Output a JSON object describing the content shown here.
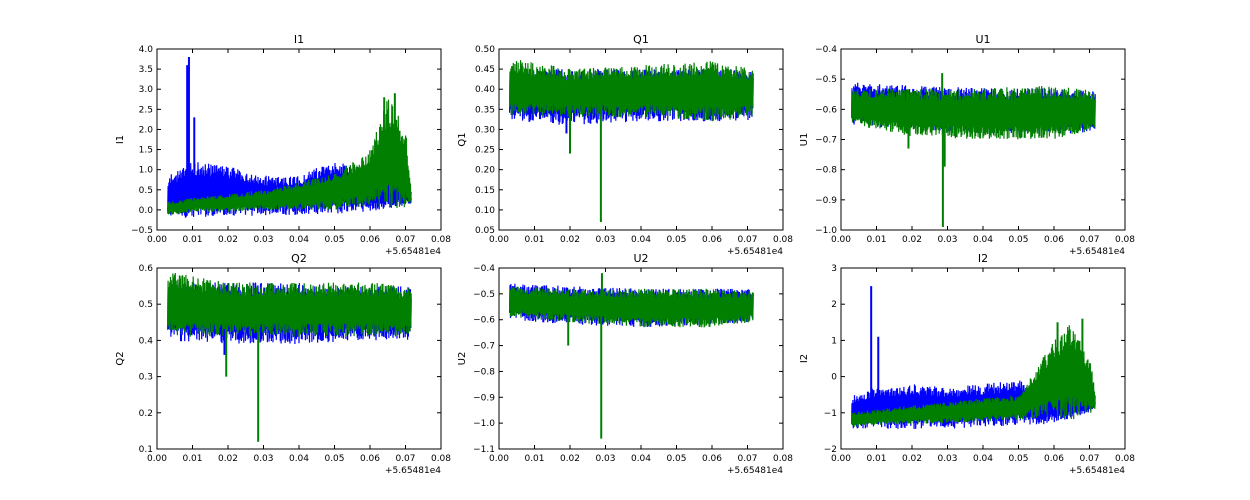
{
  "chart_data": [
    {
      "type": "line",
      "title": "I1",
      "xlabel": "",
      "ylabel": "I1",
      "xlim": [
        0.0,
        0.08
      ],
      "ylim": [
        -0.5,
        4.0
      ],
      "xticks": [
        "0.00",
        "0.01",
        "0.02",
        "0.03",
        "0.04",
        "0.05",
        "0.06",
        "0.07",
        "0.08"
      ],
      "yticks": [
        "−0.5",
        "0.0",
        "0.5",
        "1.0",
        "1.5",
        "2.0",
        "2.5",
        "3.0",
        "3.5",
        "4.0"
      ],
      "offset_label": "+5.65481e4",
      "series": [
        {
          "color": "#0000ff",
          "envelope_x": [
            0.003,
            0.01,
            0.02,
            0.03,
            0.04,
            0.05,
            0.06,
            0.07,
            0.0715
          ],
          "low": [
            -0.2,
            -0.2,
            -0.15,
            -0.15,
            -0.12,
            -0.1,
            -0.05,
            0.1,
            0.15
          ],
          "high": [
            0.85,
            1.2,
            1.1,
            0.85,
            0.85,
            1.25,
            1.0,
            0.75,
            0.3
          ],
          "spikes": [
            [
              0.0085,
              3.6
            ],
            [
              0.009,
              3.8
            ],
            [
              0.0105,
              2.3
            ]
          ]
        },
        {
          "color": "#007f00",
          "envelope_x": [
            0.003,
            0.01,
            0.02,
            0.03,
            0.04,
            0.05,
            0.06,
            0.065,
            0.07,
            0.0715
          ],
          "low": [
            -0.15,
            -0.05,
            -0.05,
            0.0,
            0.0,
            0.0,
            0.1,
            0.0,
            0.0,
            0.2
          ],
          "high": [
            0.2,
            0.3,
            0.4,
            0.5,
            0.7,
            0.9,
            1.5,
            2.8,
            2.0,
            0.5
          ],
          "spikes": [
            [
              0.067,
              2.9
            ],
            [
              0.064,
              2.8
            ]
          ]
        }
      ]
    },
    {
      "type": "line",
      "title": "Q1",
      "xlabel": "",
      "ylabel": "Q1",
      "xlim": [
        0.0,
        0.08
      ],
      "ylim": [
        0.05,
        0.5
      ],
      "xticks": [
        "0.00",
        "0.01",
        "0.02",
        "0.03",
        "0.04",
        "0.05",
        "0.06",
        "0.07",
        "0.08"
      ],
      "yticks": [
        "0.05",
        "0.10",
        "0.15",
        "0.20",
        "0.25",
        "0.30",
        "0.35",
        "0.40",
        "0.45",
        "0.50"
      ],
      "offset_label": "+5.65481e4",
      "series": [
        {
          "color": "#0000ff",
          "envelope_x": [
            0.003,
            0.02,
            0.04,
            0.06,
            0.0715
          ],
          "low": [
            0.32,
            0.31,
            0.32,
            0.32,
            0.32
          ],
          "high": [
            0.45,
            0.45,
            0.45,
            0.45,
            0.45
          ],
          "spikes": [
            [
              0.019,
              0.29
            ]
          ]
        },
        {
          "color": "#007f00",
          "envelope_x": [
            0.003,
            0.02,
            0.04,
            0.06,
            0.0715
          ],
          "low": [
            0.33,
            0.33,
            0.33,
            0.32,
            0.33
          ],
          "high": [
            0.48,
            0.45,
            0.46,
            0.47,
            0.45
          ],
          "spikes": [
            [
              0.0287,
              0.07
            ],
            [
              0.02,
              0.24
            ]
          ]
        }
      ]
    },
    {
      "type": "line",
      "title": "U1",
      "xlabel": "",
      "ylabel": "U1",
      "xlim": [
        0.0,
        0.08
      ],
      "ylim": [
        -1.0,
        -0.4
      ],
      "xticks": [
        "0.00",
        "0.01",
        "0.02",
        "0.03",
        "0.04",
        "0.05",
        "0.06",
        "0.07",
        "0.08"
      ],
      "yticks": [
        "−1.0",
        "−0.9",
        "−0.8",
        "−0.7",
        "−0.6",
        "−0.5",
        "−0.4"
      ],
      "offset_label": "+5.65481e4",
      "series": [
        {
          "color": "#0000ff",
          "envelope_x": [
            0.003,
            0.02,
            0.04,
            0.06,
            0.0715
          ],
          "low": [
            -0.65,
            -0.67,
            -0.68,
            -0.68,
            -0.68
          ],
          "high": [
            -0.51,
            -0.52,
            -0.53,
            -0.53,
            -0.54
          ],
          "spikes": []
        },
        {
          "color": "#007f00",
          "envelope_x": [
            0.003,
            0.02,
            0.04,
            0.06,
            0.0715
          ],
          "low": [
            -0.65,
            -0.69,
            -0.7,
            -0.7,
            -0.67
          ],
          "high": [
            -0.53,
            -0.53,
            -0.53,
            -0.52,
            -0.54
          ],
          "spikes": [
            [
              0.0287,
              -0.99
            ],
            [
              0.0292,
              -0.79
            ],
            [
              0.0285,
              -0.48
            ],
            [
              0.019,
              -0.73
            ]
          ]
        }
      ]
    },
    {
      "type": "line",
      "title": "Q2",
      "xlabel": "",
      "ylabel": "Q2",
      "xlim": [
        0.0,
        0.08
      ],
      "ylim": [
        0.1,
        0.6
      ],
      "xticks": [
        "0.00",
        "0.01",
        "0.02",
        "0.03",
        "0.04",
        "0.05",
        "0.06",
        "0.07",
        "0.08"
      ],
      "yticks": [
        "0.1",
        "0.2",
        "0.3",
        "0.4",
        "0.5",
        "0.6"
      ],
      "offset_label": "+5.65481e4",
      "series": [
        {
          "color": "#0000ff",
          "envelope_x": [
            0.003,
            0.02,
            0.04,
            0.06,
            0.0715
          ],
          "low": [
            0.4,
            0.39,
            0.39,
            0.4,
            0.4
          ],
          "high": [
            0.56,
            0.56,
            0.56,
            0.55,
            0.55
          ],
          "spikes": [
            [
              0.019,
              0.36
            ]
          ]
        },
        {
          "color": "#007f00",
          "envelope_x": [
            0.003,
            0.02,
            0.04,
            0.06,
            0.0715
          ],
          "low": [
            0.41,
            0.41,
            0.41,
            0.41,
            0.41
          ],
          "high": [
            0.59,
            0.56,
            0.56,
            0.56,
            0.55
          ],
          "spikes": [
            [
              0.0285,
              0.12
            ],
            [
              0.0195,
              0.3
            ]
          ]
        }
      ]
    },
    {
      "type": "line",
      "title": "U2",
      "xlabel": "",
      "ylabel": "U2",
      "xlim": [
        0.0,
        0.08
      ],
      "ylim": [
        -1.1,
        -0.4
      ],
      "xticks": [
        "0.00",
        "0.01",
        "0.02",
        "0.03",
        "0.04",
        "0.05",
        "0.06",
        "0.07",
        "0.08"
      ],
      "yticks": [
        "−1.1",
        "−1.0",
        "−0.9",
        "−0.8",
        "−0.7",
        "−0.6",
        "−0.5",
        "−0.4"
      ],
      "offset_label": "+5.65481e4",
      "series": [
        {
          "color": "#0000ff",
          "envelope_x": [
            0.003,
            0.02,
            0.04,
            0.06,
            0.0715
          ],
          "low": [
            -0.6,
            -0.62,
            -0.63,
            -0.62,
            -0.61
          ],
          "high": [
            -0.46,
            -0.47,
            -0.48,
            -0.48,
            -0.48
          ],
          "spikes": []
        },
        {
          "color": "#007f00",
          "envelope_x": [
            0.003,
            0.02,
            0.04,
            0.06,
            0.0715
          ],
          "low": [
            -0.59,
            -0.61,
            -0.63,
            -0.63,
            -0.61
          ],
          "high": [
            -0.47,
            -0.48,
            -0.48,
            -0.48,
            -0.49
          ],
          "spikes": [
            [
              0.0288,
              -1.06
            ],
            [
              0.029,
              -0.42
            ],
            [
              0.0195,
              -0.7
            ]
          ]
        }
      ]
    },
    {
      "type": "line",
      "title": "I2",
      "xlabel": "",
      "ylabel": "I2",
      "xlim": [
        0.0,
        0.08
      ],
      "ylim": [
        -2.0,
        3.0
      ],
      "xticks": [
        "0.00",
        "0.01",
        "0.02",
        "0.03",
        "0.04",
        "0.05",
        "0.06",
        "0.07",
        "0.08"
      ],
      "yticks": [
        "−2",
        "−1",
        "0",
        "1",
        "2",
        "3"
      ],
      "offset_label": "+5.65481e4",
      "series": [
        {
          "color": "#0000ff",
          "envelope_x": [
            0.003,
            0.01,
            0.02,
            0.03,
            0.04,
            0.05,
            0.06,
            0.07,
            0.0715
          ],
          "low": [
            -1.45,
            -1.45,
            -1.45,
            -1.45,
            -1.4,
            -1.35,
            -1.3,
            -1.0,
            -0.9
          ],
          "high": [
            -0.5,
            -0.3,
            -0.2,
            -0.3,
            -0.2,
            -0.1,
            -0.3,
            -0.5,
            -0.7
          ],
          "spikes": [
            [
              0.0085,
              2.5
            ],
            [
              0.0105,
              1.1
            ]
          ]
        },
        {
          "color": "#007f00",
          "envelope_x": [
            0.003,
            0.01,
            0.02,
            0.03,
            0.04,
            0.05,
            0.06,
            0.065,
            0.07,
            0.0715
          ],
          "low": [
            -1.4,
            -1.35,
            -1.3,
            -1.3,
            -1.25,
            -1.2,
            -1.1,
            -1.2,
            -1.0,
            -1.0
          ],
          "high": [
            -1.0,
            -0.9,
            -0.8,
            -0.7,
            -0.6,
            -0.5,
            1.0,
            1.5,
            0.5,
            -0.4
          ],
          "spikes": [
            [
              0.061,
              1.5
            ],
            [
              0.068,
              1.6
            ]
          ]
        }
      ]
    }
  ]
}
